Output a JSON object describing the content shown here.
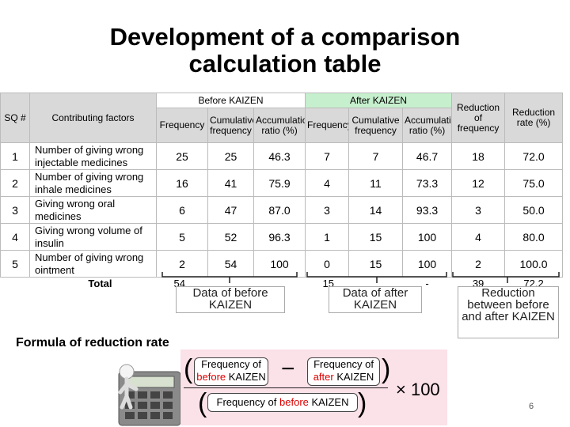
{
  "title": [
    "Development of a comparison",
    "calculation table"
  ],
  "table": {
    "group_headers": [
      "Before KAIZEN",
      "After KAIZEN"
    ],
    "headers": [
      "SQ #",
      "Contributing factors",
      "Frequency",
      "Cumulative frequency",
      "Accumulation ratio (%)",
      "Frequency",
      "Cumulative frequency",
      "Accumulation ratio (%)",
      "Reduction of frequency",
      "Reduction rate (%)"
    ],
    "rows": [
      [
        "1",
        "Number of giving wrong injectable medicines",
        "25",
        "25",
        "46.3",
        "7",
        "7",
        "46.7",
        "18",
        "72.0"
      ],
      [
        "2",
        "Number of giving wrong inhale medicines",
        "16",
        "41",
        "75.9",
        "4",
        "11",
        "73.3",
        "12",
        "75.0"
      ],
      [
        "3",
        "Giving wrong oral medicines",
        "6",
        "47",
        "87.0",
        "3",
        "14",
        "93.3",
        "3",
        "50.0"
      ],
      [
        "4",
        "Giving wrong volume of insulin",
        "5",
        "52",
        "96.3",
        "1",
        "15",
        "100",
        "4",
        "80.0"
      ],
      [
        "5",
        "Number of giving wrong ointment",
        "2",
        "54",
        "100",
        "0",
        "15",
        "100",
        "2",
        "100.0"
      ]
    ],
    "total": {
      "label": "Total",
      "frequency_before": "54",
      "frequency_after": "15",
      "accumulation_after": "-",
      "reduction_frequency": "39",
      "reduction_rate": "72.2"
    }
  },
  "callouts": [
    "Data of before KAIZEN",
    "Data of after KAIZEN",
    "Reduction between before and after KAIZEN"
  ],
  "formula": {
    "label": "Formula of reduction rate",
    "before_term": {
      "start": "Frequency of",
      "highlight": "before",
      "end": "KAIZEN"
    },
    "after_term": {
      "start": "Frequency of",
      "highlight": "after",
      "end": "KAIZEN"
    },
    "multiplier": "× 100"
  },
  "page_number": "6"
}
